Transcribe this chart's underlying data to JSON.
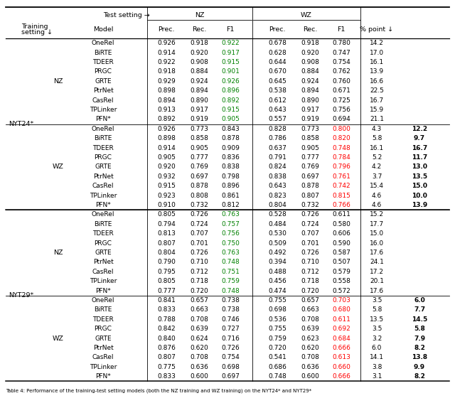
{
  "dataset_groups": [
    {
      "dataset": "NYT24*",
      "training_groups": [
        {
          "training": "NZ",
          "rows": [
            {
              "model": "OneRel",
              "nz_prec": "0.926",
              "nz_rec": "0.918",
              "nz_f1": "0.922",
              "nz_f1_color": "green",
              "wz_prec": "0.678",
              "wz_rec": "0.918",
              "wz_f1": "0.780",
              "wz_f1_color": "black",
              "pct": "14.2",
              "delta": ""
            },
            {
              "model": "BiRTE",
              "nz_prec": "0.914",
              "nz_rec": "0.920",
              "nz_f1": "0.917",
              "nz_f1_color": "green",
              "wz_prec": "0.628",
              "wz_rec": "0.920",
              "wz_f1": "0.747",
              "wz_f1_color": "black",
              "pct": "17.0",
              "delta": ""
            },
            {
              "model": "TDEER",
              "nz_prec": "0.922",
              "nz_rec": "0.908",
              "nz_f1": "0.915",
              "nz_f1_color": "green",
              "wz_prec": "0.644",
              "wz_rec": "0.908",
              "wz_f1": "0.754",
              "wz_f1_color": "black",
              "pct": "16.1",
              "delta": ""
            },
            {
              "model": "PRGC",
              "nz_prec": "0.918",
              "nz_rec": "0.884",
              "nz_f1": "0.901",
              "nz_f1_color": "green",
              "wz_prec": "0.670",
              "wz_rec": "0.884",
              "wz_f1": "0.762",
              "wz_f1_color": "black",
              "pct": "13.9",
              "delta": ""
            },
            {
              "model": "GRTE",
              "nz_prec": "0.929",
              "nz_rec": "0.924",
              "nz_f1": "0.926",
              "nz_f1_color": "green",
              "wz_prec": "0.645",
              "wz_rec": "0.924",
              "wz_f1": "0.760",
              "wz_f1_color": "black",
              "pct": "16.6",
              "delta": ""
            },
            {
              "model": "PtrNet",
              "nz_prec": "0.898",
              "nz_rec": "0.894",
              "nz_f1": "0.896",
              "nz_f1_color": "green",
              "wz_prec": "0.538",
              "wz_rec": "0.894",
              "wz_f1": "0.671",
              "wz_f1_color": "black",
              "pct": "22.5",
              "delta": ""
            },
            {
              "model": "CasRel",
              "nz_prec": "0.894",
              "nz_rec": "0.890",
              "nz_f1": "0.892",
              "nz_f1_color": "green",
              "wz_prec": "0.612",
              "wz_rec": "0.890",
              "wz_f1": "0.725",
              "wz_f1_color": "black",
              "pct": "16.7",
              "delta": ""
            },
            {
              "model": "TPLinker",
              "nz_prec": "0.913",
              "nz_rec": "0.917",
              "nz_f1": "0.915",
              "nz_f1_color": "green",
              "wz_prec": "0.643",
              "wz_rec": "0.917",
              "wz_f1": "0.756",
              "wz_f1_color": "black",
              "pct": "15.9",
              "delta": ""
            },
            {
              "model": "PFN*",
              "nz_prec": "0.892",
              "nz_rec": "0.919",
              "nz_f1": "0.905",
              "nz_f1_color": "green",
              "wz_prec": "0.557",
              "wz_rec": "0.919",
              "wz_f1": "0.694",
              "wz_f1_color": "black",
              "pct": "21.1",
              "delta": ""
            }
          ]
        },
        {
          "training": "WZ",
          "rows": [
            {
              "model": "OneRel",
              "nz_prec": "0.926",
              "nz_rec": "0.773",
              "nz_f1": "0.843",
              "nz_f1_color": "black",
              "wz_prec": "0.828",
              "wz_rec": "0.773",
              "wz_f1": "0.800",
              "wz_f1_color": "red",
              "pct": "4.3",
              "delta": "12.2"
            },
            {
              "model": "BiRTE",
              "nz_prec": "0.898",
              "nz_rec": "0.858",
              "nz_f1": "0.878",
              "nz_f1_color": "black",
              "wz_prec": "0.786",
              "wz_rec": "0.858",
              "wz_f1": "0.820",
              "wz_f1_color": "red",
              "pct": "5.8",
              "delta": "9.7"
            },
            {
              "model": "TDEER",
              "nz_prec": "0.914",
              "nz_rec": "0.905",
              "nz_f1": "0.909",
              "nz_f1_color": "black",
              "wz_prec": "0.637",
              "wz_rec": "0.905",
              "wz_f1": "0.748",
              "wz_f1_color": "red",
              "pct": "16.1",
              "delta": "16.7"
            },
            {
              "model": "PRGC",
              "nz_prec": "0.905",
              "nz_rec": "0.777",
              "nz_f1": "0.836",
              "nz_f1_color": "black",
              "wz_prec": "0.791",
              "wz_rec": "0.777",
              "wz_f1": "0.784",
              "wz_f1_color": "red",
              "pct": "5.2",
              "delta": "11.7"
            },
            {
              "model": "GRTE",
              "nz_prec": "0.920",
              "nz_rec": "0.769",
              "nz_f1": "0.838",
              "nz_f1_color": "black",
              "wz_prec": "0.824",
              "wz_rec": "0.769",
              "wz_f1": "0.796",
              "wz_f1_color": "red",
              "pct": "4.2",
              "delta": "13.0"
            },
            {
              "model": "PtrNet",
              "nz_prec": "0.932",
              "nz_rec": "0.697",
              "nz_f1": "0.798",
              "nz_f1_color": "black",
              "wz_prec": "0.838",
              "wz_rec": "0.697",
              "wz_f1": "0.761",
              "wz_f1_color": "red",
              "pct": "3.7",
              "delta": "13.5"
            },
            {
              "model": "CasRel",
              "nz_prec": "0.915",
              "nz_rec": "0.878",
              "nz_f1": "0.896",
              "nz_f1_color": "black",
              "wz_prec": "0.643",
              "wz_rec": "0.878",
              "wz_f1": "0.742",
              "wz_f1_color": "red",
              "pct": "15.4",
              "delta": "15.0"
            },
            {
              "model": "TPLinker",
              "nz_prec": "0.923",
              "nz_rec": "0.808",
              "nz_f1": "0.861",
              "nz_f1_color": "black",
              "wz_prec": "0.823",
              "wz_rec": "0.807",
              "wz_f1": "0.815",
              "wz_f1_color": "red",
              "pct": "4.6",
              "delta": "10.0"
            },
            {
              "model": "PFN*",
              "nz_prec": "0.910",
              "nz_rec": "0.732",
              "nz_f1": "0.812",
              "nz_f1_color": "black",
              "wz_prec": "0.804",
              "wz_rec": "0.732",
              "wz_f1": "0.766",
              "wz_f1_color": "red",
              "pct": "4.6",
              "delta": "13.9"
            }
          ]
        }
      ]
    },
    {
      "dataset": "NYT29*",
      "training_groups": [
        {
          "training": "NZ",
          "rows": [
            {
              "model": "OneRel",
              "nz_prec": "0.805",
              "nz_rec": "0.726",
              "nz_f1": "0.763",
              "nz_f1_color": "green",
              "wz_prec": "0.528",
              "wz_rec": "0.726",
              "wz_f1": "0.611",
              "wz_f1_color": "black",
              "pct": "15.2",
              "delta": ""
            },
            {
              "model": "BiRTE",
              "nz_prec": "0.794",
              "nz_rec": "0.724",
              "nz_f1": "0.757",
              "nz_f1_color": "green",
              "wz_prec": "0.484",
              "wz_rec": "0.724",
              "wz_f1": "0.580",
              "wz_f1_color": "black",
              "pct": "17.7",
              "delta": ""
            },
            {
              "model": "TDEER",
              "nz_prec": "0.813",
              "nz_rec": "0.707",
              "nz_f1": "0.756",
              "nz_f1_color": "green",
              "wz_prec": "0.530",
              "wz_rec": "0.707",
              "wz_f1": "0.606",
              "wz_f1_color": "black",
              "pct": "15.0",
              "delta": ""
            },
            {
              "model": "PRGC",
              "nz_prec": "0.807",
              "nz_rec": "0.701",
              "nz_f1": "0.750",
              "nz_f1_color": "green",
              "wz_prec": "0.509",
              "wz_rec": "0.701",
              "wz_f1": "0.590",
              "wz_f1_color": "black",
              "pct": "16.0",
              "delta": ""
            },
            {
              "model": "GRTE",
              "nz_prec": "0.804",
              "nz_rec": "0.726",
              "nz_f1": "0.763",
              "nz_f1_color": "green",
              "wz_prec": "0.492",
              "wz_rec": "0.726",
              "wz_f1": "0.587",
              "wz_f1_color": "black",
              "pct": "17.6",
              "delta": ""
            },
            {
              "model": "PtrNet",
              "nz_prec": "0.790",
              "nz_rec": "0.710",
              "nz_f1": "0.748",
              "nz_f1_color": "green",
              "wz_prec": "0.394",
              "wz_rec": "0.710",
              "wz_f1": "0.507",
              "wz_f1_color": "black",
              "pct": "24.1",
              "delta": ""
            },
            {
              "model": "CasRel",
              "nz_prec": "0.795",
              "nz_rec": "0.712",
              "nz_f1": "0.751",
              "nz_f1_color": "green",
              "wz_prec": "0.488",
              "wz_rec": "0.712",
              "wz_f1": "0.579",
              "wz_f1_color": "black",
              "pct": "17.2",
              "delta": ""
            },
            {
              "model": "TPLinker",
              "nz_prec": "0.805",
              "nz_rec": "0.718",
              "nz_f1": "0.759",
              "nz_f1_color": "green",
              "wz_prec": "0.456",
              "wz_rec": "0.718",
              "wz_f1": "0.558",
              "wz_f1_color": "black",
              "pct": "20.1",
              "delta": ""
            },
            {
              "model": "PFN*",
              "nz_prec": "0.777",
              "nz_rec": "0.720",
              "nz_f1": "0.748",
              "nz_f1_color": "green",
              "wz_prec": "0.474",
              "wz_rec": "0.720",
              "wz_f1": "0.572",
              "wz_f1_color": "black",
              "pct": "17.6",
              "delta": ""
            }
          ]
        },
        {
          "training": "WZ",
          "rows": [
            {
              "model": "OneRel",
              "nz_prec": "0.841",
              "nz_rec": "0.657",
              "nz_f1": "0.738",
              "nz_f1_color": "black",
              "wz_prec": "0.755",
              "wz_rec": "0.657",
              "wz_f1": "0.703",
              "wz_f1_color": "red",
              "pct": "3.5",
              "delta": "6.0"
            },
            {
              "model": "BiRTE",
              "nz_prec": "0.833",
              "nz_rec": "0.663",
              "nz_f1": "0.738",
              "nz_f1_color": "black",
              "wz_prec": "0.698",
              "wz_rec": "0.663",
              "wz_f1": "0.680",
              "wz_f1_color": "red",
              "pct": "5.8",
              "delta": "7.7"
            },
            {
              "model": "TDEER",
              "nz_prec": "0.788",
              "nz_rec": "0.708",
              "nz_f1": "0.746",
              "nz_f1_color": "black",
              "wz_prec": "0.536",
              "wz_rec": "0.708",
              "wz_f1": "0.611",
              "wz_f1_color": "red",
              "pct": "13.5",
              "delta": "14.5"
            },
            {
              "model": "PRGC",
              "nz_prec": "0.842",
              "nz_rec": "0.639",
              "nz_f1": "0.727",
              "nz_f1_color": "black",
              "wz_prec": "0.755",
              "wz_rec": "0.639",
              "wz_f1": "0.692",
              "wz_f1_color": "red",
              "pct": "3.5",
              "delta": "5.8"
            },
            {
              "model": "GRTE",
              "nz_prec": "0.840",
              "nz_rec": "0.624",
              "nz_f1": "0.716",
              "nz_f1_color": "black",
              "wz_prec": "0.759",
              "wz_rec": "0.623",
              "wz_f1": "0.684",
              "wz_f1_color": "red",
              "pct": "3.2",
              "delta": "7.9"
            },
            {
              "model": "PtrNet",
              "nz_prec": "0.876",
              "nz_rec": "0.620",
              "nz_f1": "0.726",
              "nz_f1_color": "black",
              "wz_prec": "0.720",
              "wz_rec": "0.620",
              "wz_f1": "0.666",
              "wz_f1_color": "red",
              "pct": "6.0",
              "delta": "8.2"
            },
            {
              "model": "CasRel",
              "nz_prec": "0.807",
              "nz_rec": "0.708",
              "nz_f1": "0.754",
              "nz_f1_color": "black",
              "wz_prec": "0.541",
              "wz_rec": "0.708",
              "wz_f1": "0.613",
              "wz_f1_color": "red",
              "pct": "14.1",
              "delta": "13.8"
            },
            {
              "model": "TPLinker",
              "nz_prec": "0.775",
              "nz_rec": "0.636",
              "nz_f1": "0.698",
              "nz_f1_color": "black",
              "wz_prec": "0.686",
              "wz_rec": "0.636",
              "wz_f1": "0.660",
              "wz_f1_color": "red",
              "pct": "3.8",
              "delta": "9.9"
            },
            {
              "model": "PFN*",
              "nz_prec": "0.833",
              "nz_rec": "0.600",
              "nz_f1": "0.697",
              "nz_f1_color": "black",
              "wz_prec": "0.748",
              "wz_rec": "0.600",
              "wz_f1": "0.666",
              "wz_f1_color": "red",
              "pct": "3.1",
              "delta": "8.2"
            }
          ]
        }
      ]
    }
  ],
  "caption": "Table 4: Performance of the training-test setting models (both the NZ training and WZ training) on the NYT24* and NYT29*",
  "font_size": 6.5,
  "header_font_size": 6.8
}
